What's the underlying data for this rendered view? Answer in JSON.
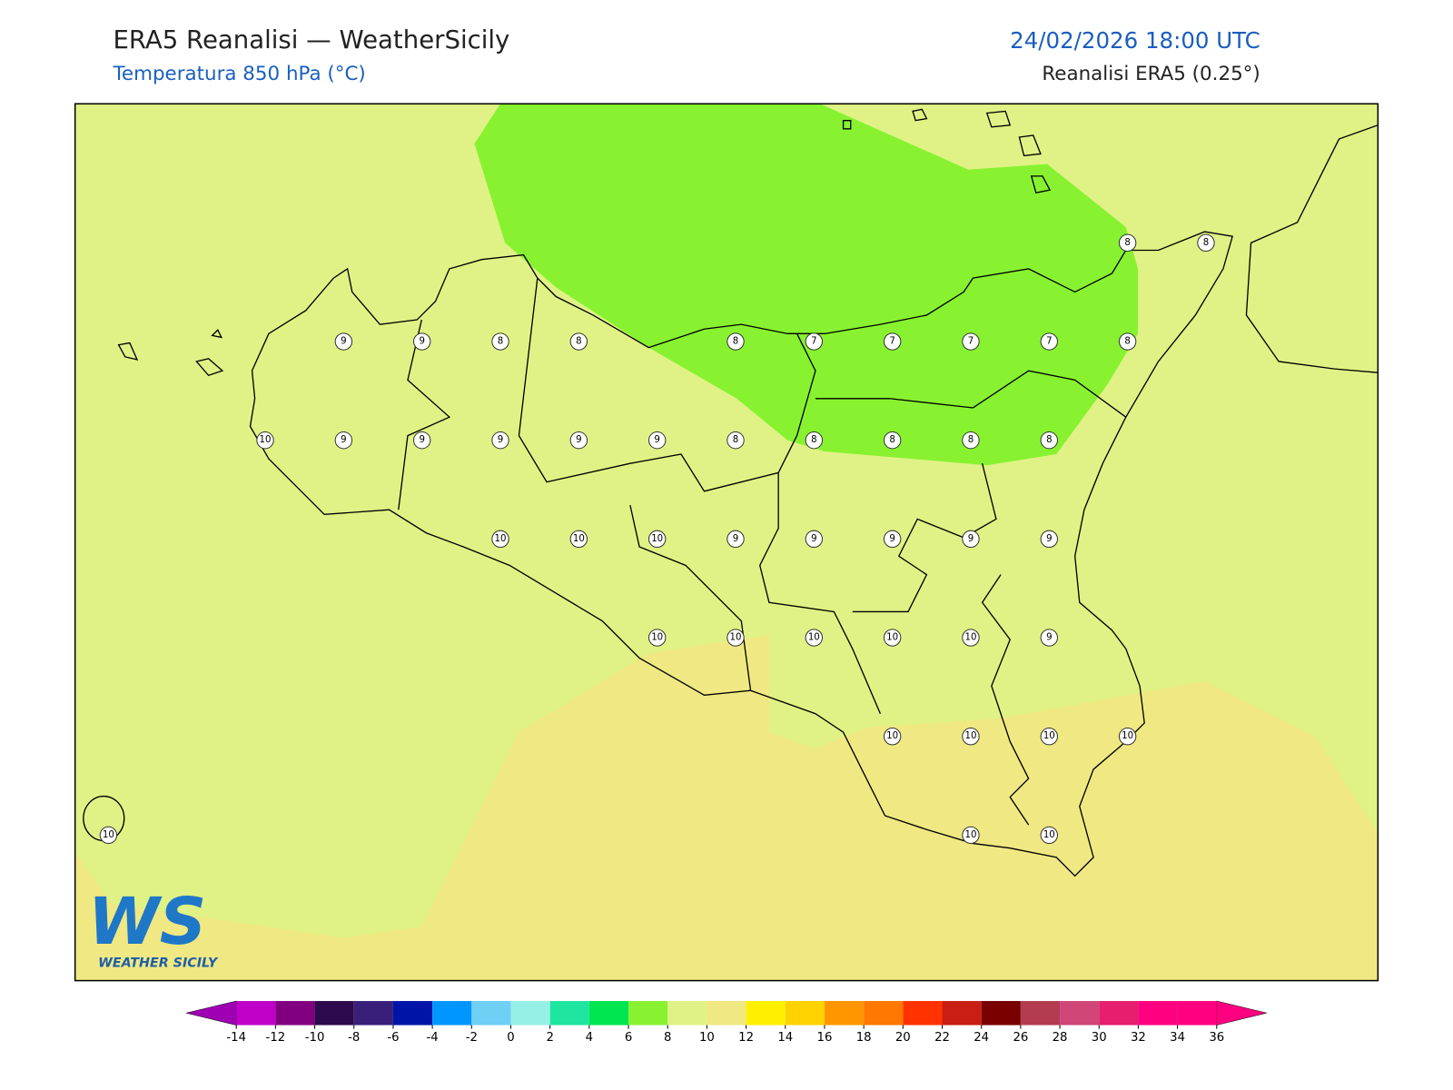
{
  "header": {
    "title": "ERA5 Reanalisi — WeatherSicily",
    "subtitle": "Temperatura 850 hPa (°C)",
    "valid_time": "24/02/2026 18:00 UTC",
    "source": "Reanalisi ERA5 (0.25°)"
  },
  "logo": {
    "mark": "WS",
    "name": "WEATHER SICILY"
  },
  "map": {
    "grid_values": [
      [
        null,
        null,
        null,
        null,
        null,
        null,
        null,
        null,
        null,
        null,
        null,
        null,
        null,
        8,
        8
      ],
      [
        null,
        null,
        null,
        9,
        9,
        8,
        8,
        null,
        8,
        7,
        7,
        7,
        7,
        8,
        null
      ],
      [
        null,
        null,
        10,
        9,
        9,
        9,
        9,
        9,
        8,
        8,
        8,
        8,
        8,
        null,
        null
      ],
      [
        null,
        null,
        null,
        null,
        null,
        10,
        10,
        10,
        9,
        9,
        9,
        9,
        9,
        null,
        null
      ],
      [
        null,
        null,
        null,
        null,
        null,
        null,
        null,
        10,
        10,
        10,
        10,
        10,
        9,
        null,
        null
      ],
      [
        null,
        null,
        null,
        null,
        null,
        null,
        null,
        null,
        null,
        null,
        10,
        10,
        10,
        10,
        null
      ],
      [
        10,
        null,
        null,
        null,
        null,
        null,
        null,
        null,
        null,
        null,
        null,
        10,
        10,
        null,
        null
      ]
    ]
  },
  "colorbar": {
    "ticks": [
      -14,
      -12,
      -10,
      -8,
      -6,
      -4,
      -2,
      0,
      2,
      4,
      6,
      8,
      10,
      12,
      14,
      16,
      18,
      20,
      22,
      24,
      26,
      28,
      30,
      32,
      34,
      36
    ],
    "colors": [
      "#c000c8",
      "#800080",
      "#2d0a4e",
      "#3a1f7a",
      "#0015a8",
      "#0096ff",
      "#6fcff5",
      "#96f0e6",
      "#1ee6a0",
      "#00e650",
      "#88f230",
      "#e0f285",
      "#f0e882",
      "#fff000",
      "#ffd200",
      "#ff9600",
      "#ff7800",
      "#ff3200",
      "#c81e14",
      "#780000",
      "#b43c50",
      "#d04678",
      "#e61e6e",
      "#ff0080",
      "#ff0080"
    ],
    "under_color": "#a000b4",
    "over_color": "#ff0080"
  }
}
